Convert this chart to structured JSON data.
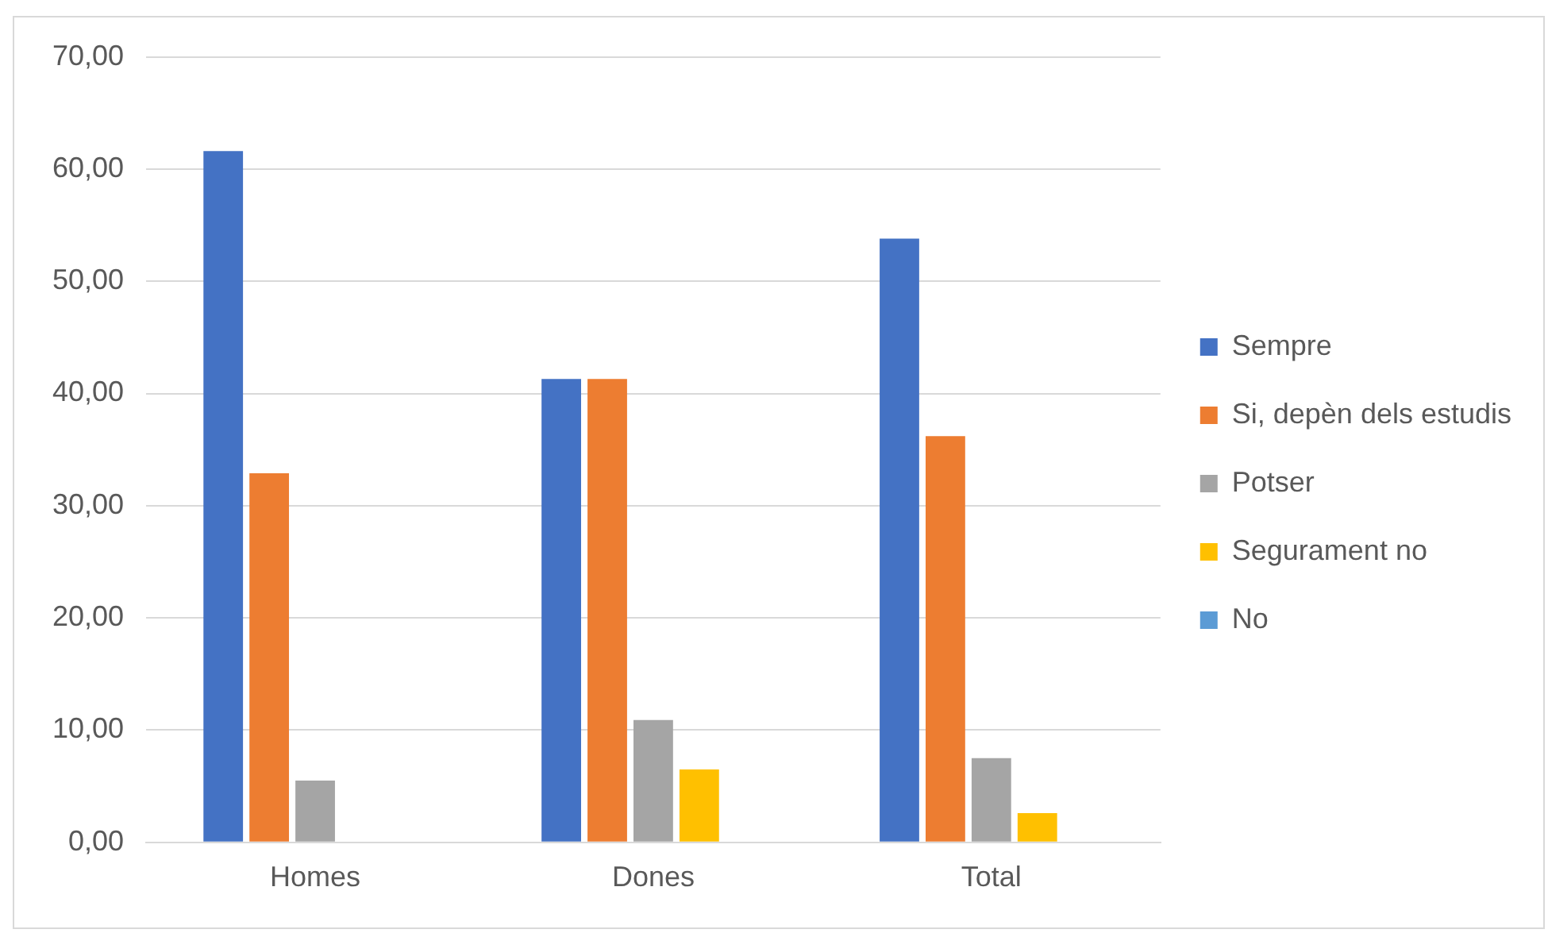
{
  "chart_data": {
    "type": "bar",
    "categories": [
      "Homes",
      "Dones",
      "Total"
    ],
    "series": [
      {
        "name": "Sempre",
        "color": "#4472c4",
        "values": [
          61.6,
          41.3,
          53.8
        ]
      },
      {
        "name": "Si, depèn dels estudis",
        "color": "#ed7d31",
        "values": [
          32.9,
          41.3,
          36.2
        ]
      },
      {
        "name": "Potser",
        "color": "#a5a5a5",
        "values": [
          5.5,
          10.9,
          7.5
        ]
      },
      {
        "name": "Segurament no",
        "color": "#ffc000",
        "values": [
          0,
          6.5,
          2.6
        ]
      },
      {
        "name": "No",
        "color": "#5b9bd5",
        "values": [
          0,
          0,
          0
        ]
      }
    ],
    "ylim": [
      0,
      70
    ],
    "yticks": [
      {
        "value": 0,
        "label": "0,00"
      },
      {
        "value": 10,
        "label": "10,00"
      },
      {
        "value": 20,
        "label": "20,00"
      },
      {
        "value": 30,
        "label": "30,00"
      },
      {
        "value": 40,
        "label": "40,00"
      },
      {
        "value": 50,
        "label": "50,00"
      },
      {
        "value": 60,
        "label": "60,00"
      },
      {
        "value": 70,
        "label": "70,00"
      }
    ],
    "grid": "y",
    "legend": "right"
  }
}
